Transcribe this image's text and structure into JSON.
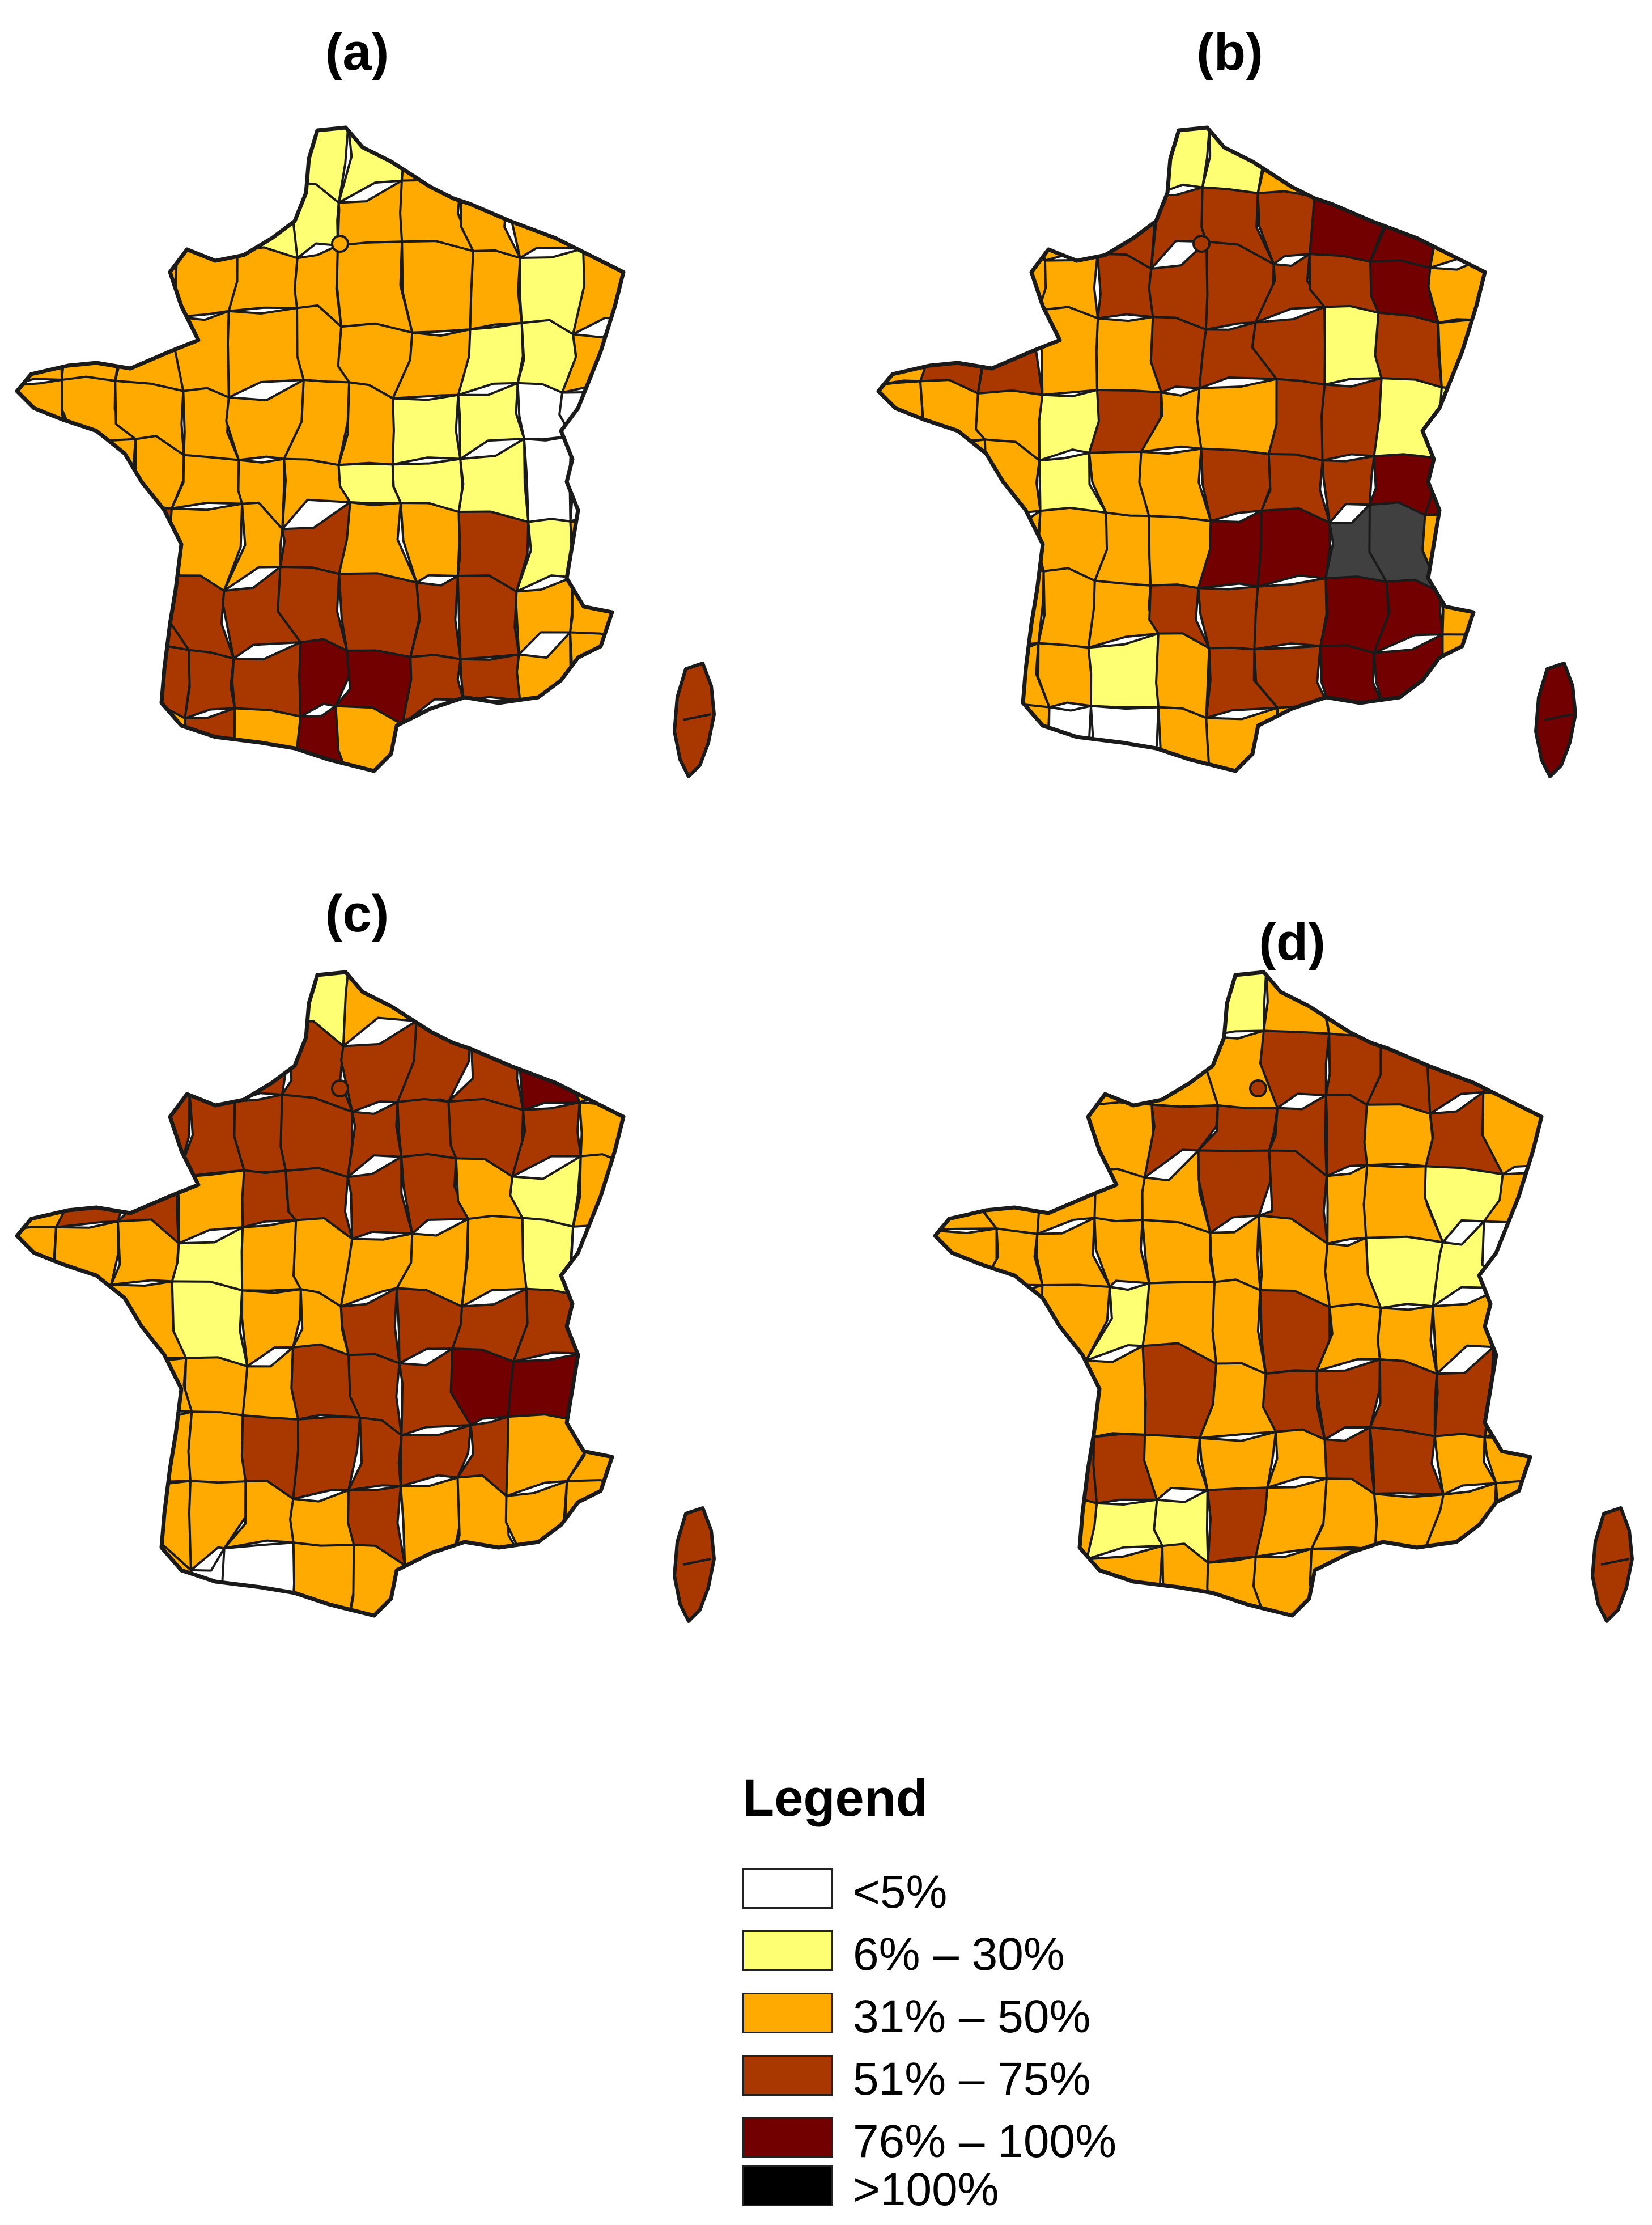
{
  "panels": [
    {
      "label": "(a)"
    },
    {
      "label": "(b)"
    },
    {
      "label": "(c)"
    },
    {
      "label": "(d)"
    }
  ],
  "legend": {
    "title": "Legend",
    "items": [
      {
        "label": "<5%",
        "color": "#ffffff"
      },
      {
        "label": "6% – 30%",
        "color": "#ffff73"
      },
      {
        "label": "31% – 50%",
        "color": "#ffaa00"
      },
      {
        "label": "51% – 75%",
        "color": "#a83800"
      },
      {
        "label": "76% – 100%",
        "color": "#730000"
      },
      {
        "label": ">100%",
        "color": "#000000"
      }
    ]
  },
  "colors": {
    "border": "#1a1a1a",
    "gray_region": "#404040"
  }
}
